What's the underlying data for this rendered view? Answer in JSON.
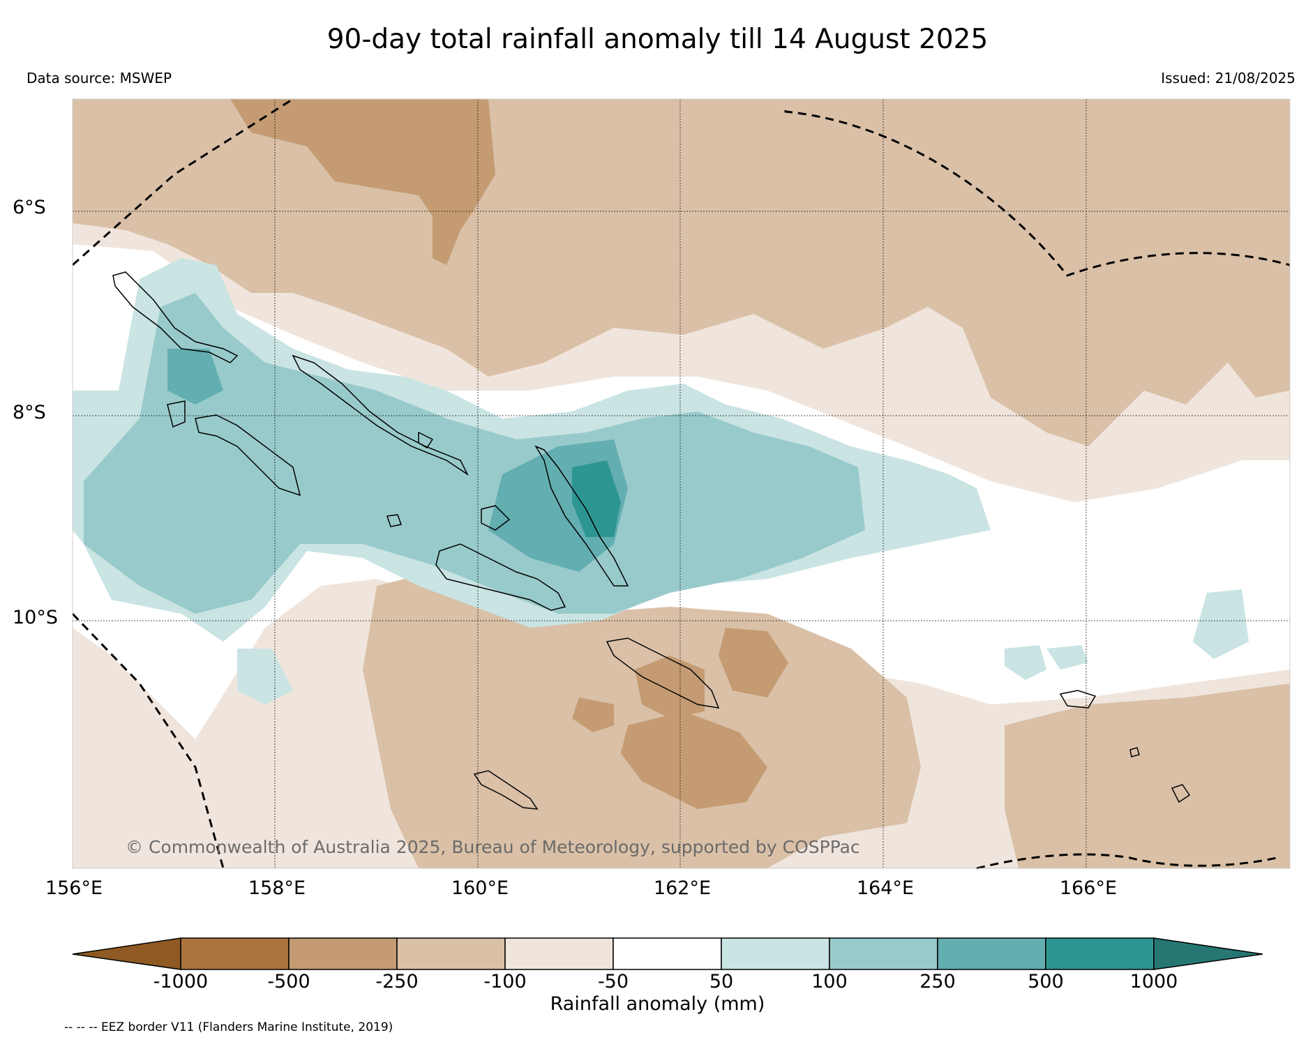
{
  "title": "90-day total rainfall anomaly till 14 August 2025",
  "data_source": "Data source: MSWEP",
  "issued": "Issued: 21/08/2025",
  "copyright": "© Commonwealth of Australia 2025, Bureau of Meteorology, supported by COSPPac",
  "lat_labels": [
    "6°S",
    "8°S",
    "10°S"
  ],
  "lon_labels": [
    "156°E",
    "158°E",
    "160°E",
    "162°E",
    "164°E",
    "166°E"
  ],
  "colorbar": {
    "title": "Rainfall anomaly (mm)",
    "tick_labels": [
      "-1000",
      "-500",
      "-250",
      "-100",
      "-50",
      "50",
      "100",
      "250",
      "500",
      "1000"
    ],
    "colors": [
      "#8f5a23",
      "#ab743f",
      "#c49b72",
      "#d9c0a7",
      "#f0e5dc",
      "#ffffff",
      "#c9e4e3",
      "#99cacb",
      "#63aeb0",
      "#2e9692",
      "#267773"
    ]
  },
  "footnote": "-- -- -- EEZ border V11 (Flanders Marine Institute, 2019)"
}
